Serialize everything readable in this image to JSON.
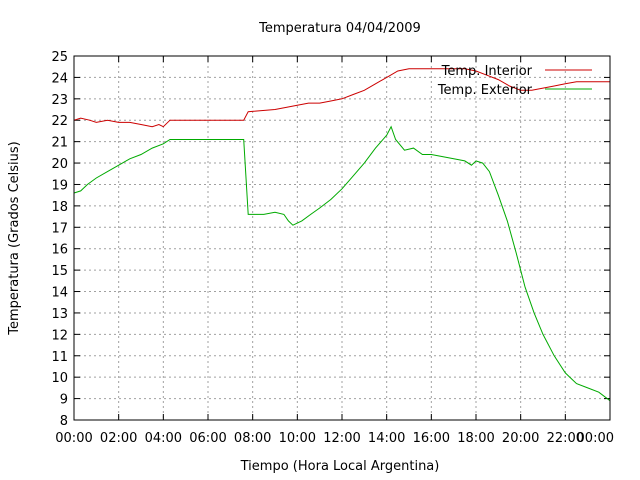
{
  "chart_data": {
    "type": "line",
    "title": "Temperatura 04/04/2009",
    "xlabel": "Tiempo (Hora Local Argentina)",
    "ylabel": "Temperatura (Grados Celsius)",
    "xlim": [
      0,
      24
    ],
    "ylim": [
      8,
      25
    ],
    "grid": true,
    "legend_position": "top-right",
    "x_ticks": [
      "00:00",
      "02:00",
      "04:00",
      "06:00",
      "08:00",
      "10:00",
      "12:00",
      "14:00",
      "16:00",
      "18:00",
      "20:00",
      "22:00",
      "00:00"
    ],
    "y_ticks": [
      8,
      9,
      10,
      11,
      12,
      13,
      14,
      15,
      16,
      17,
      18,
      19,
      20,
      21,
      22,
      23,
      24,
      25
    ],
    "series": [
      {
        "name": "Temp. Interior",
        "color": "#cc0000",
        "points": [
          [
            0.0,
            22.0
          ],
          [
            0.3,
            22.1
          ],
          [
            0.7,
            22.0
          ],
          [
            1.0,
            21.9
          ],
          [
            1.5,
            22.0
          ],
          [
            2.0,
            21.9
          ],
          [
            2.5,
            21.9
          ],
          [
            3.0,
            21.8
          ],
          [
            3.5,
            21.7
          ],
          [
            3.8,
            21.8
          ],
          [
            4.0,
            21.7
          ],
          [
            4.3,
            22.0
          ],
          [
            5.0,
            22.0
          ],
          [
            6.0,
            22.0
          ],
          [
            7.0,
            22.0
          ],
          [
            7.6,
            22.0
          ],
          [
            7.8,
            22.4
          ],
          [
            9.0,
            22.5
          ],
          [
            9.5,
            22.6
          ],
          [
            10.0,
            22.7
          ],
          [
            10.5,
            22.8
          ],
          [
            11.0,
            22.8
          ],
          [
            11.5,
            22.9
          ],
          [
            12.0,
            23.0
          ],
          [
            12.5,
            23.2
          ],
          [
            13.0,
            23.4
          ],
          [
            13.5,
            23.7
          ],
          [
            14.0,
            24.0
          ],
          [
            14.5,
            24.3
          ],
          [
            15.0,
            24.4
          ],
          [
            16.0,
            24.4
          ],
          [
            17.0,
            24.4
          ],
          [
            17.5,
            24.4
          ],
          [
            18.0,
            24.3
          ],
          [
            18.5,
            24.1
          ],
          [
            19.0,
            23.9
          ],
          [
            19.5,
            23.6
          ],
          [
            20.0,
            23.4
          ],
          [
            20.5,
            23.4
          ],
          [
            21.0,
            23.5
          ],
          [
            21.5,
            23.6
          ],
          [
            22.0,
            23.7
          ],
          [
            22.5,
            23.8
          ],
          [
            23.0,
            23.8
          ],
          [
            24.0,
            23.8
          ]
        ]
      },
      {
        "name": "Temp. Exterior",
        "color": "#00aa00",
        "points": [
          [
            0.0,
            18.6
          ],
          [
            0.3,
            18.7
          ],
          [
            0.6,
            19.0
          ],
          [
            1.0,
            19.3
          ],
          [
            1.5,
            19.6
          ],
          [
            2.0,
            19.9
          ],
          [
            2.5,
            20.2
          ],
          [
            3.0,
            20.4
          ],
          [
            3.5,
            20.7
          ],
          [
            4.0,
            20.9
          ],
          [
            4.3,
            21.1
          ],
          [
            5.0,
            21.1
          ],
          [
            6.0,
            21.1
          ],
          [
            7.0,
            21.1
          ],
          [
            7.6,
            21.1
          ],
          [
            7.8,
            17.6
          ],
          [
            8.5,
            17.6
          ],
          [
            9.0,
            17.7
          ],
          [
            9.4,
            17.6
          ],
          [
            9.6,
            17.3
          ],
          [
            9.8,
            17.1
          ],
          [
            10.2,
            17.3
          ],
          [
            10.6,
            17.6
          ],
          [
            11.0,
            17.9
          ],
          [
            11.5,
            18.3
          ],
          [
            12.0,
            18.8
          ],
          [
            12.5,
            19.4
          ],
          [
            13.0,
            20.0
          ],
          [
            13.5,
            20.7
          ],
          [
            14.0,
            21.3
          ],
          [
            14.2,
            21.7
          ],
          [
            14.4,
            21.1
          ],
          [
            14.8,
            20.6
          ],
          [
            15.2,
            20.7
          ],
          [
            15.6,
            20.4
          ],
          [
            16.0,
            20.4
          ],
          [
            16.5,
            20.3
          ],
          [
            17.0,
            20.2
          ],
          [
            17.5,
            20.1
          ],
          [
            17.8,
            19.9
          ],
          [
            18.0,
            20.1
          ],
          [
            18.3,
            20.0
          ],
          [
            18.6,
            19.6
          ],
          [
            19.0,
            18.5
          ],
          [
            19.4,
            17.3
          ],
          [
            19.8,
            15.8
          ],
          [
            20.2,
            14.2
          ],
          [
            20.6,
            13.0
          ],
          [
            21.0,
            12.0
          ],
          [
            21.5,
            11.0
          ],
          [
            22.0,
            10.2
          ],
          [
            22.5,
            9.7
          ],
          [
            23.0,
            9.5
          ],
          [
            23.5,
            9.3
          ],
          [
            24.0,
            8.9
          ]
        ]
      }
    ]
  }
}
